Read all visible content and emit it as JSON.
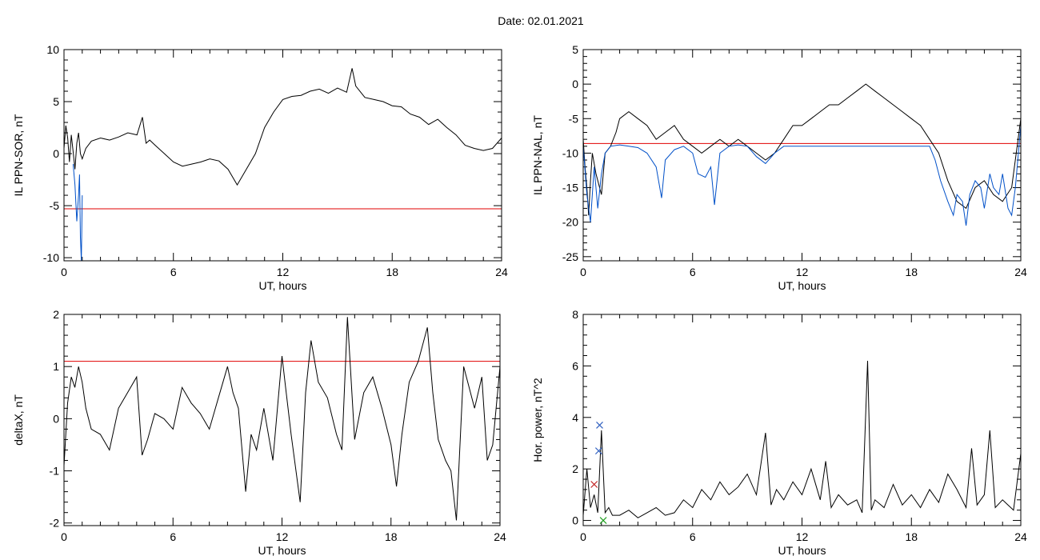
{
  "header": {
    "title": "Date:  02.01.2021"
  },
  "colors": {
    "trace": "#000000",
    "threshold": "#e00000",
    "blue_trace": "#0050c8",
    "marker_blue": "#3060c0",
    "marker_red": "#c02020",
    "marker_green": "#20a020"
  },
  "chart_data": [
    {
      "id": "sor",
      "type": "line",
      "title": "",
      "xlabel": "UT, hours",
      "ylabel": "IL PPN-SOR, nT",
      "xlim": [
        0,
        24
      ],
      "ylim": [
        -10.3,
        10
      ],
      "xticks": [
        0,
        6,
        12,
        18,
        24
      ],
      "yticks": [
        -10,
        -5,
        0,
        5,
        10
      ],
      "threshold": -5.3,
      "series": [
        {
          "color": "#000000",
          "x": [
            0,
            0.1,
            0.2,
            0.3,
            0.4,
            0.5,
            0.6,
            0.7,
            0.8,
            0.9,
            1.0,
            1.2,
            1.5,
            2,
            2.5,
            3,
            3.5,
            4,
            4.3,
            4.5,
            4.7,
            5,
            5.5,
            6,
            6.5,
            7,
            7.5,
            8,
            8.5,
            9,
            9.5,
            10,
            10.5,
            11,
            11.5,
            12,
            12.5,
            13,
            13.5,
            14,
            14.5,
            15,
            15.5,
            15.8,
            16,
            16.5,
            17,
            17.5,
            18,
            18.5,
            19,
            19.5,
            20,
            20.5,
            21,
            21.5,
            22,
            22.5,
            23,
            23.5,
            24
          ],
          "y": [
            0.5,
            2.7,
            1.5,
            -0.8,
            1.8,
            0.2,
            -1.5,
            1.0,
            2.0,
            0,
            -0.5,
            0.5,
            1.2,
            1.5,
            1.3,
            1.6,
            2.0,
            1.8,
            3.5,
            1.0,
            1.3,
            0.8,
            0.0,
            -0.8,
            -1.2,
            -1.0,
            -0.8,
            -0.5,
            -0.7,
            -1.5,
            -3.0,
            -1.5,
            0,
            2.5,
            4.0,
            5.2,
            5.5,
            5.6,
            6.0,
            6.2,
            5.8,
            6.3,
            5.9,
            8.2,
            6.5,
            5.4,
            5.2,
            5.0,
            4.6,
            4.5,
            3.8,
            3.5,
            2.8,
            3.3,
            2.5,
            1.8,
            0.8,
            0.5,
            0.3,
            0.5,
            1.5
          ]
        },
        {
          "color": "#0050c8",
          "x": [
            0.5,
            0.6,
            0.7,
            0.8,
            0.85,
            0.9,
            0.95,
            1.0
          ],
          "y": [
            -1.0,
            -3.0,
            -6.5,
            -4.0,
            -2.0,
            -8.0,
            -10.3,
            -4.0
          ]
        }
      ]
    },
    {
      "id": "nal",
      "type": "line",
      "title": "",
      "xlabel": "UT, hours",
      "ylabel": "IL PPN-NAL, nT",
      "xlim": [
        0,
        24
      ],
      "ylim": [
        -25.6,
        5
      ],
      "xticks": [
        0,
        6,
        12,
        18,
        24
      ],
      "yticks": [
        -25,
        -20,
        -15,
        -10,
        -5,
        0,
        5
      ],
      "threshold": -8.6,
      "series": [
        {
          "color": "#000000",
          "x": [
            0,
            0.1,
            0.2,
            0.3,
            0.4,
            0.5,
            0.7,
            1.0,
            1.2,
            1.5,
            1.8,
            2,
            2.5,
            3,
            3.5,
            4,
            4.5,
            5,
            5.5,
            6,
            6.5,
            7,
            7.5,
            8,
            8.5,
            9,
            9.5,
            10,
            10.5,
            11,
            11.5,
            12,
            12.5,
            13,
            13.5,
            14,
            14.5,
            15,
            15.5,
            16,
            16.5,
            17,
            17.5,
            18,
            18.5,
            19,
            19.5,
            20,
            20.5,
            21,
            21.5,
            22,
            22.5,
            23,
            23.5,
            24
          ],
          "y": [
            -8,
            -12,
            -15,
            -19,
            -14,
            -10,
            -13,
            -16,
            -10,
            -9,
            -7,
            -5,
            -4,
            -5,
            -6,
            -8,
            -7,
            -6,
            -8,
            -9,
            -10,
            -9,
            -8,
            -9,
            -8,
            -9,
            -10,
            -11,
            -10,
            -8,
            -6,
            -6,
            -5,
            -4,
            -3,
            -3,
            -2,
            -1,
            0,
            -1,
            -2,
            -3,
            -4,
            -5,
            -6,
            -8,
            -10,
            -14,
            -17,
            -18,
            -15,
            -14,
            -16,
            -17,
            -15,
            -5
          ]
        },
        {
          "color": "#0050c8",
          "x": [
            0,
            0.2,
            0.4,
            0.6,
            0.8,
            1.0,
            1.2,
            1.5,
            2,
            2.5,
            3,
            3.5,
            4,
            4.3,
            4.5,
            5,
            5.5,
            6,
            6.3,
            6.7,
            7,
            7.2,
            7.5,
            8,
            8.5,
            9,
            9.5,
            10,
            10.5,
            11,
            19,
            19.3,
            19.6,
            20,
            20.3,
            20.5,
            20.8,
            21,
            21.2,
            21.5,
            21.8,
            22,
            22.3,
            22.5,
            22.8,
            23,
            23.3,
            23.5,
            23.7,
            24
          ],
          "y": [
            -9,
            -16,
            -20,
            -12,
            -18,
            -13,
            -10,
            -9,
            -8.8,
            -9,
            -9.2,
            -10,
            -12,
            -16.5,
            -11,
            -9.5,
            -9,
            -10,
            -13,
            -13.5,
            -12,
            -17.5,
            -10,
            -9,
            -8.8,
            -9,
            -10.5,
            -11.5,
            -10,
            -9,
            -9,
            -11,
            -14,
            -17,
            -19,
            -16,
            -17,
            -20.5,
            -16,
            -14,
            -15,
            -18,
            -13,
            -15,
            -16,
            -13,
            -18,
            -19,
            -15,
            -6
          ]
        }
      ]
    },
    {
      "id": "deltax",
      "type": "line",
      "title": "",
      "xlabel": "UT, hours",
      "ylabel": "deltaX, nT",
      "xlim": [
        0,
        24
      ],
      "ylim": [
        -2.05,
        2
      ],
      "xticks": [
        0,
        6,
        12,
        18,
        24
      ],
      "yticks": [
        -2,
        -1,
        0,
        1,
        2
      ],
      "threshold": 1.1,
      "series": [
        {
          "color": "#000000",
          "x": [
            0,
            0.2,
            0.4,
            0.6,
            0.8,
            1.0,
            1.2,
            1.5,
            2,
            2.5,
            3,
            3.5,
            4,
            4.3,
            4.6,
            5,
            5.5,
            6,
            6.5,
            7,
            7.5,
            8,
            8.5,
            9,
            9.3,
            9.6,
            10,
            10.3,
            10.6,
            11,
            11.5,
            12,
            12.2,
            12.5,
            13,
            13.3,
            13.6,
            14,
            14.5,
            15,
            15.3,
            15.6,
            16,
            16.5,
            17,
            17.5,
            18,
            18.3,
            18.6,
            19,
            19.5,
            20,
            20.3,
            20.6,
            21,
            21.3,
            21.6,
            22,
            22.3,
            22.6,
            23,
            23.3,
            23.6,
            24
          ],
          "y": [
            -0.9,
            0.3,
            0.8,
            0.6,
            1.0,
            0.7,
            0.2,
            -0.2,
            -0.3,
            -0.6,
            0.2,
            0.5,
            0.8,
            -0.7,
            -0.4,
            0.1,
            0.0,
            -0.2,
            0.6,
            0.3,
            0.1,
            -0.2,
            0.4,
            1.0,
            0.5,
            0.2,
            -1.4,
            -0.3,
            -0.6,
            0.2,
            -0.8,
            1.2,
            0.6,
            -0.3,
            -1.6,
            0.5,
            1.5,
            0.7,
            0.4,
            -0.3,
            -0.6,
            1.95,
            -0.4,
            0.5,
            0.8,
            0.2,
            -0.5,
            -1.3,
            -0.3,
            0.7,
            1.1,
            1.75,
            0.5,
            -0.4,
            -0.8,
            -1.0,
            -1.95,
            1.0,
            0.6,
            0.2,
            0.8,
            -0.8,
            -0.5,
            1.0
          ]
        }
      ]
    },
    {
      "id": "power",
      "type": "line",
      "title": "",
      "xlabel": "UT, hours",
      "ylabel": "Hor. power, nT^2",
      "xlim": [
        0,
        24
      ],
      "ylim": [
        -0.2,
        8
      ],
      "xticks": [
        0,
        6,
        12,
        18,
        24
      ],
      "yticks": [
        0,
        2,
        4,
        6,
        8
      ],
      "series": [
        {
          "color": "#000000",
          "x": [
            0,
            0.2,
            0.4,
            0.6,
            0.8,
            1.0,
            1.2,
            1.4,
            1.6,
            2,
            2.5,
            3,
            3.5,
            4,
            4.5,
            5,
            5.5,
            6,
            6.5,
            7,
            7.5,
            8,
            8.5,
            9,
            9.5,
            10,
            10.3,
            10.6,
            11,
            11.5,
            12,
            12.5,
            13,
            13.3,
            13.6,
            14,
            14.5,
            15,
            15.3,
            15.6,
            15.8,
            16,
            16.5,
            17,
            17.5,
            18,
            18.5,
            19,
            19.5,
            20,
            20.5,
            21,
            21.3,
            21.6,
            22,
            22.3,
            22.6,
            23,
            23.3,
            23.6,
            24
          ],
          "y": [
            0.2,
            2.0,
            0.5,
            1.0,
            0.3,
            3.5,
            0.3,
            0.5,
            0.2,
            0.2,
            0.4,
            0.1,
            0.3,
            0.5,
            0.2,
            0.3,
            0.8,
            0.5,
            1.2,
            0.8,
            1.5,
            1.0,
            1.3,
            1.8,
            1.0,
            3.4,
            0.6,
            1.2,
            0.8,
            1.5,
            1.0,
            2.0,
            0.8,
            2.3,
            0.5,
            1.0,
            0.6,
            0.8,
            0.3,
            6.2,
            0.4,
            0.8,
            0.5,
            1.4,
            0.6,
            1.0,
            0.5,
            1.2,
            0.7,
            1.8,
            1.2,
            0.5,
            2.8,
            0.6,
            1.0,
            3.5,
            0.5,
            0.8,
            0.6,
            0.4,
            2.6
          ]
        }
      ],
      "markers": [
        {
          "x": 0.9,
          "y": 3.7,
          "color": "#3060c0"
        },
        {
          "x": 0.85,
          "y": 2.7,
          "color": "#3060c0"
        },
        {
          "x": 0.6,
          "y": 1.4,
          "color": "#c02020"
        },
        {
          "x": 1.1,
          "y": 0.0,
          "color": "#20a020"
        }
      ]
    }
  ]
}
